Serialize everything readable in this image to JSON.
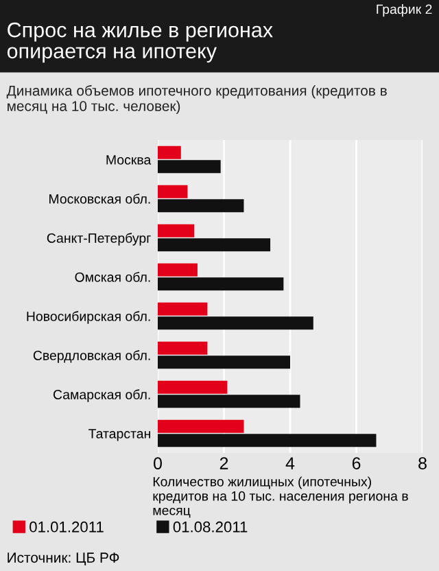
{
  "chart_data": {
    "type": "bar",
    "orientation": "horizontal",
    "title": "Спрос на жилье в регионах опирается на ипотеку",
    "subtitle": "Динамика объемов ипотечного кредитования (кредитов в месяц на 10 тыс. человек)",
    "xlabel": "Количество жилищных (ипотечных) кредитов на 10 тыс. населения региона в месяц",
    "annotations": [
      "График 2",
      "Источник: ЦБ РФ"
    ],
    "categories": [
      "Москва",
      "Московская обл.",
      "Санкт-Петербург",
      "Омская обл.",
      "Новосибирская обл.",
      "Свердловская обл.",
      "Самарская обл.",
      "Татарстан"
    ],
    "series": [
      {
        "name": "01.01.2011",
        "color": "#e3001b",
        "values": [
          0.7,
          0.9,
          1.1,
          1.2,
          1.5,
          1.5,
          2.1,
          2.6
        ]
      },
      {
        "name": "01.08.2011",
        "color": "#111111",
        "values": [
          1.9,
          2.6,
          3.4,
          3.8,
          4.7,
          4.0,
          4.3,
          6.6
        ]
      }
    ],
    "xlim": [
      0,
      8
    ],
    "xticks": [
      0,
      2,
      4,
      6,
      8
    ],
    "grid": "x",
    "legend": "bottom"
  }
}
